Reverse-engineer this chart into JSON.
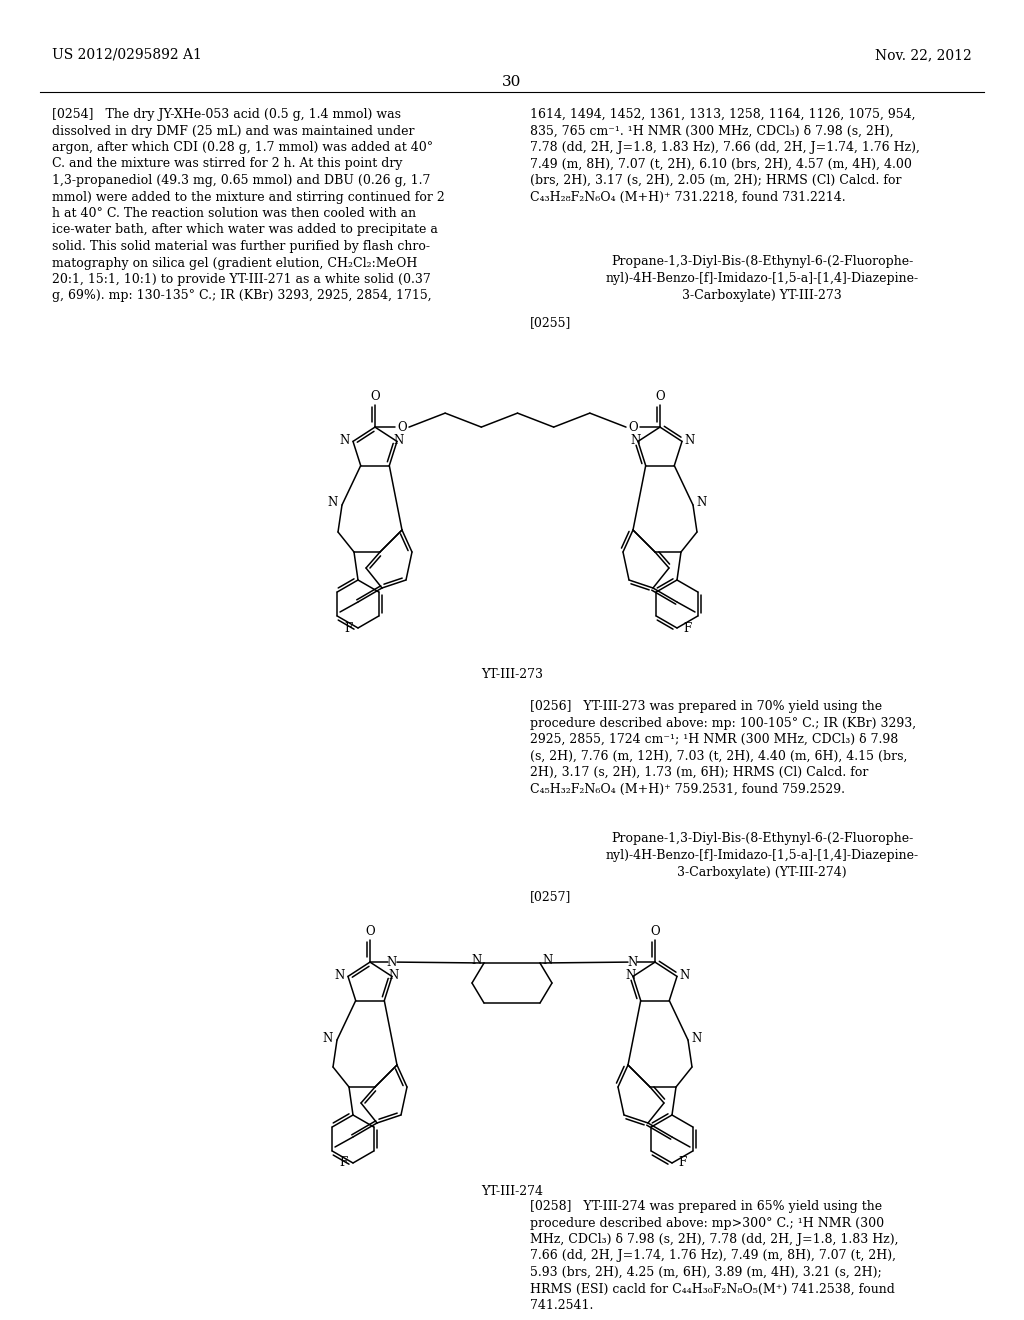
{
  "background_color": "#ffffff",
  "page_header_left": "US 2012/0295892 A1",
  "page_header_right": "Nov. 22, 2012",
  "page_number": "30"
}
